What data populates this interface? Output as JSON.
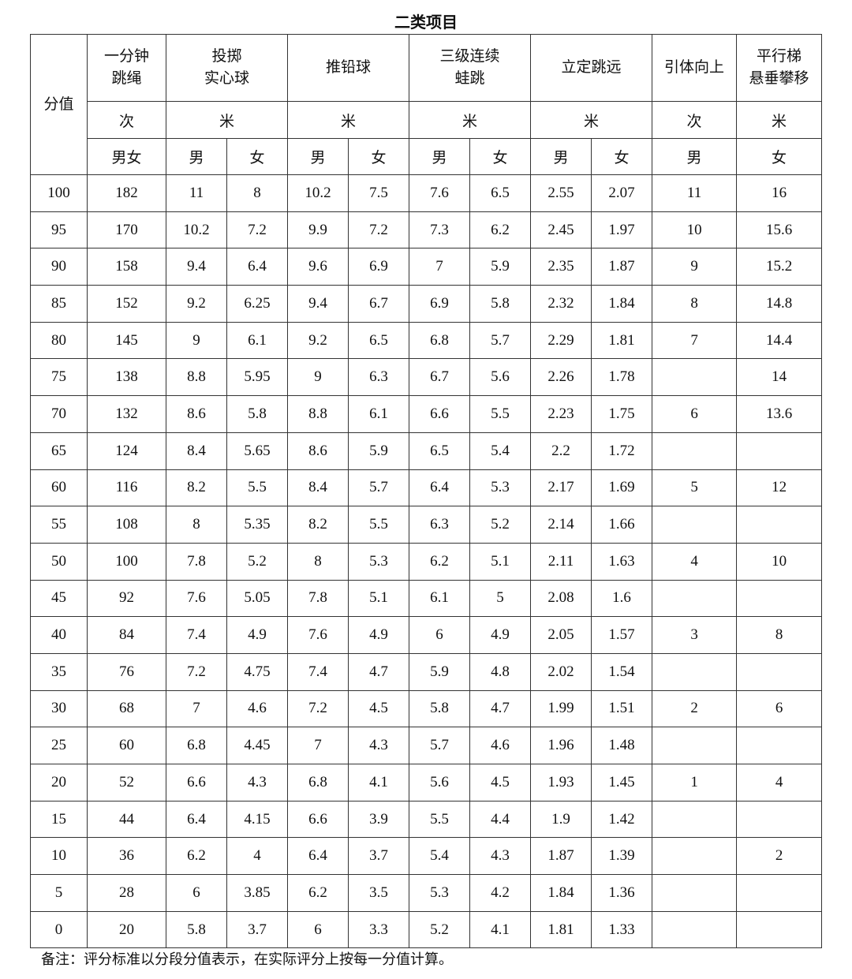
{
  "title": "二类项目",
  "header": {
    "score": "分值",
    "events": [
      {
        "name": "一分钟\n跳绳",
        "unit": "次",
        "genders": [
          "男女"
        ]
      },
      {
        "name": "投掷\n实心球",
        "unit": "米",
        "genders": [
          "男",
          "女"
        ]
      },
      {
        "name": "推铅球",
        "unit": "米",
        "genders": [
          "男",
          "女"
        ]
      },
      {
        "name": "三级连续\n蛙跳",
        "unit": "米",
        "genders": [
          "男",
          "女"
        ]
      },
      {
        "name": "立定跳远",
        "unit": "米",
        "genders": [
          "男",
          "女"
        ]
      },
      {
        "name": "引体向上",
        "unit": "次",
        "genders": [
          "男"
        ]
      },
      {
        "name": "平行梯\n悬垂攀移",
        "unit": "米",
        "genders": [
          "女"
        ]
      }
    ]
  },
  "rows": [
    [
      "100",
      "182",
      "11",
      "8",
      "10.2",
      "7.5",
      "7.6",
      "6.5",
      "2.55",
      "2.07",
      "11",
      "16"
    ],
    [
      "95",
      "170",
      "10.2",
      "7.2",
      "9.9",
      "7.2",
      "7.3",
      "6.2",
      "2.45",
      "1.97",
      "10",
      "15.6"
    ],
    [
      "90",
      "158",
      "9.4",
      "6.4",
      "9.6",
      "6.9",
      "7",
      "5.9",
      "2.35",
      "1.87",
      "9",
      "15.2"
    ],
    [
      "85",
      "152",
      "9.2",
      "6.25",
      "9.4",
      "6.7",
      "6.9",
      "5.8",
      "2.32",
      "1.84",
      "8",
      "14.8"
    ],
    [
      "80",
      "145",
      "9",
      "6.1",
      "9.2",
      "6.5",
      "6.8",
      "5.7",
      "2.29",
      "1.81",
      "7",
      "14.4"
    ],
    [
      "75",
      "138",
      "8.8",
      "5.95",
      "9",
      "6.3",
      "6.7",
      "5.6",
      "2.26",
      "1.78",
      "",
      "14"
    ],
    [
      "70",
      "132",
      "8.6",
      "5.8",
      "8.8",
      "6.1",
      "6.6",
      "5.5",
      "2.23",
      "1.75",
      "6",
      "13.6"
    ],
    [
      "65",
      "124",
      "8.4",
      "5.65",
      "8.6",
      "5.9",
      "6.5",
      "5.4",
      "2.2",
      "1.72",
      "",
      ""
    ],
    [
      "60",
      "116",
      "8.2",
      "5.5",
      "8.4",
      "5.7",
      "6.4",
      "5.3",
      "2.17",
      "1.69",
      "5",
      "12"
    ],
    [
      "55",
      "108",
      "8",
      "5.35",
      "8.2",
      "5.5",
      "6.3",
      "5.2",
      "2.14",
      "1.66",
      "",
      ""
    ],
    [
      "50",
      "100",
      "7.8",
      "5.2",
      "8",
      "5.3",
      "6.2",
      "5.1",
      "2.11",
      "1.63",
      "4",
      "10"
    ],
    [
      "45",
      "92",
      "7.6",
      "5.05",
      "7.8",
      "5.1",
      "6.1",
      "5",
      "2.08",
      "1.6",
      "",
      ""
    ],
    [
      "40",
      "84",
      "7.4",
      "4.9",
      "7.6",
      "4.9",
      "6",
      "4.9",
      "2.05",
      "1.57",
      "3",
      "8"
    ],
    [
      "35",
      "76",
      "7.2",
      "4.75",
      "7.4",
      "4.7",
      "5.9",
      "4.8",
      "2.02",
      "1.54",
      "",
      ""
    ],
    [
      "30",
      "68",
      "7",
      "4.6",
      "7.2",
      "4.5",
      "5.8",
      "4.7",
      "1.99",
      "1.51",
      "2",
      "6"
    ],
    [
      "25",
      "60",
      "6.8",
      "4.45",
      "7",
      "4.3",
      "5.7",
      "4.6",
      "1.96",
      "1.48",
      "",
      ""
    ],
    [
      "20",
      "52",
      "6.6",
      "4.3",
      "6.8",
      "4.1",
      "5.6",
      "4.5",
      "1.93",
      "1.45",
      "1",
      "4"
    ],
    [
      "15",
      "44",
      "6.4",
      "4.15",
      "6.6",
      "3.9",
      "5.5",
      "4.4",
      "1.9",
      "1.42",
      "",
      ""
    ],
    [
      "10",
      "36",
      "6.2",
      "4",
      "6.4",
      "3.7",
      "5.4",
      "4.3",
      "1.87",
      "1.39",
      "",
      "2"
    ],
    [
      "5",
      "28",
      "6",
      "3.85",
      "6.2",
      "3.5",
      "5.3",
      "4.2",
      "1.84",
      "1.36",
      "",
      ""
    ],
    [
      "0",
      "20",
      "5.8",
      "3.7",
      "6",
      "3.3",
      "5.2",
      "4.1",
      "1.81",
      "1.33",
      "",
      ""
    ]
  ],
  "note": "备注：评分标准以分段分值表示，在实际评分上按每一分值计算。"
}
